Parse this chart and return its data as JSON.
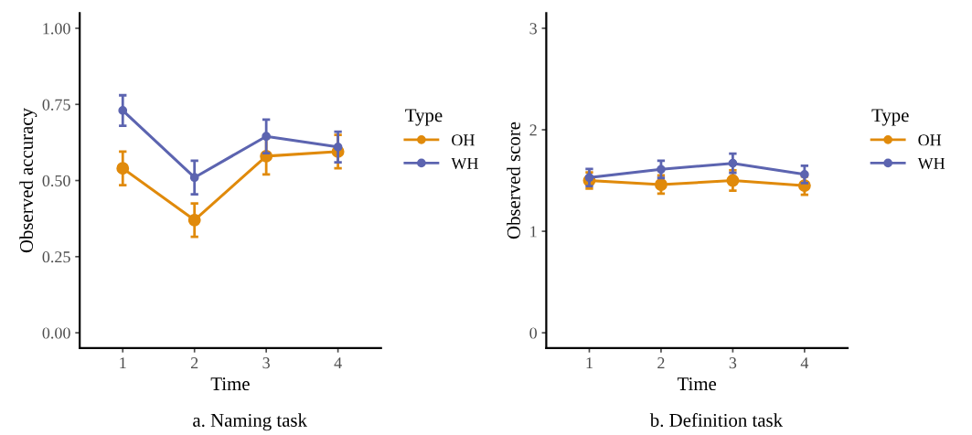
{
  "chart_data": [
    {
      "type": "line",
      "xlabel": "Time",
      "ylabel": "Observed accuracy",
      "legend_title": "Type",
      "legend": "right",
      "marker": "circle",
      "line_style": "solid",
      "grid": false,
      "x": [
        1,
        2,
        3,
        4
      ],
      "xlim": [
        0.4,
        4.6
      ],
      "xticks": [
        1,
        2,
        3,
        4
      ],
      "ylim": [
        -0.05,
        1.05
      ],
      "yticks": [
        {
          "value": 0,
          "label": "0.00"
        },
        {
          "value": 0.25,
          "label": "0.25"
        },
        {
          "value": 0.5,
          "label": "0.50"
        },
        {
          "value": 0.75,
          "label": "0.75"
        },
        {
          "value": 1,
          "label": "1.00"
        }
      ],
      "series": [
        {
          "name": "OH",
          "color": "#e08a0b",
          "values": [
            0.54,
            0.37,
            0.58,
            0.595
          ],
          "errors": [
            0.055,
            0.055,
            0.06,
            0.055
          ]
        },
        {
          "name": "WH",
          "color": "#5c64b0",
          "values": [
            0.73,
            0.51,
            0.645,
            0.61
          ],
          "errors": [
            0.05,
            0.055,
            0.055,
            0.05
          ]
        }
      ],
      "annotations": [
        "a. Naming task"
      ]
    },
    {
      "type": "line",
      "xlabel": "Time",
      "ylabel": "Observed score",
      "legend_title": "Type",
      "legend": "right",
      "marker": "circle",
      "line_style": "solid",
      "grid": false,
      "x": [
        1,
        2,
        3,
        4
      ],
      "xlim": [
        0.4,
        4.6
      ],
      "xticks": [
        1,
        2,
        3,
        4
      ],
      "ylim": [
        -0.15,
        3.15
      ],
      "yticks": [
        0,
        1,
        2,
        3
      ],
      "series": [
        {
          "name": "OH",
          "color": "#e08a0b",
          "values": [
            1.5,
            1.46,
            1.5,
            1.45
          ],
          "errors": [
            0.08,
            0.09,
            0.1,
            0.09
          ]
        },
        {
          "name": "WH",
          "color": "#5c64b0",
          "values": [
            1.53,
            1.61,
            1.67,
            1.56
          ],
          "errors": [
            0.085,
            0.085,
            0.095,
            0.085
          ]
        }
      ],
      "annotations": [
        "b. Definition task"
      ]
    }
  ]
}
